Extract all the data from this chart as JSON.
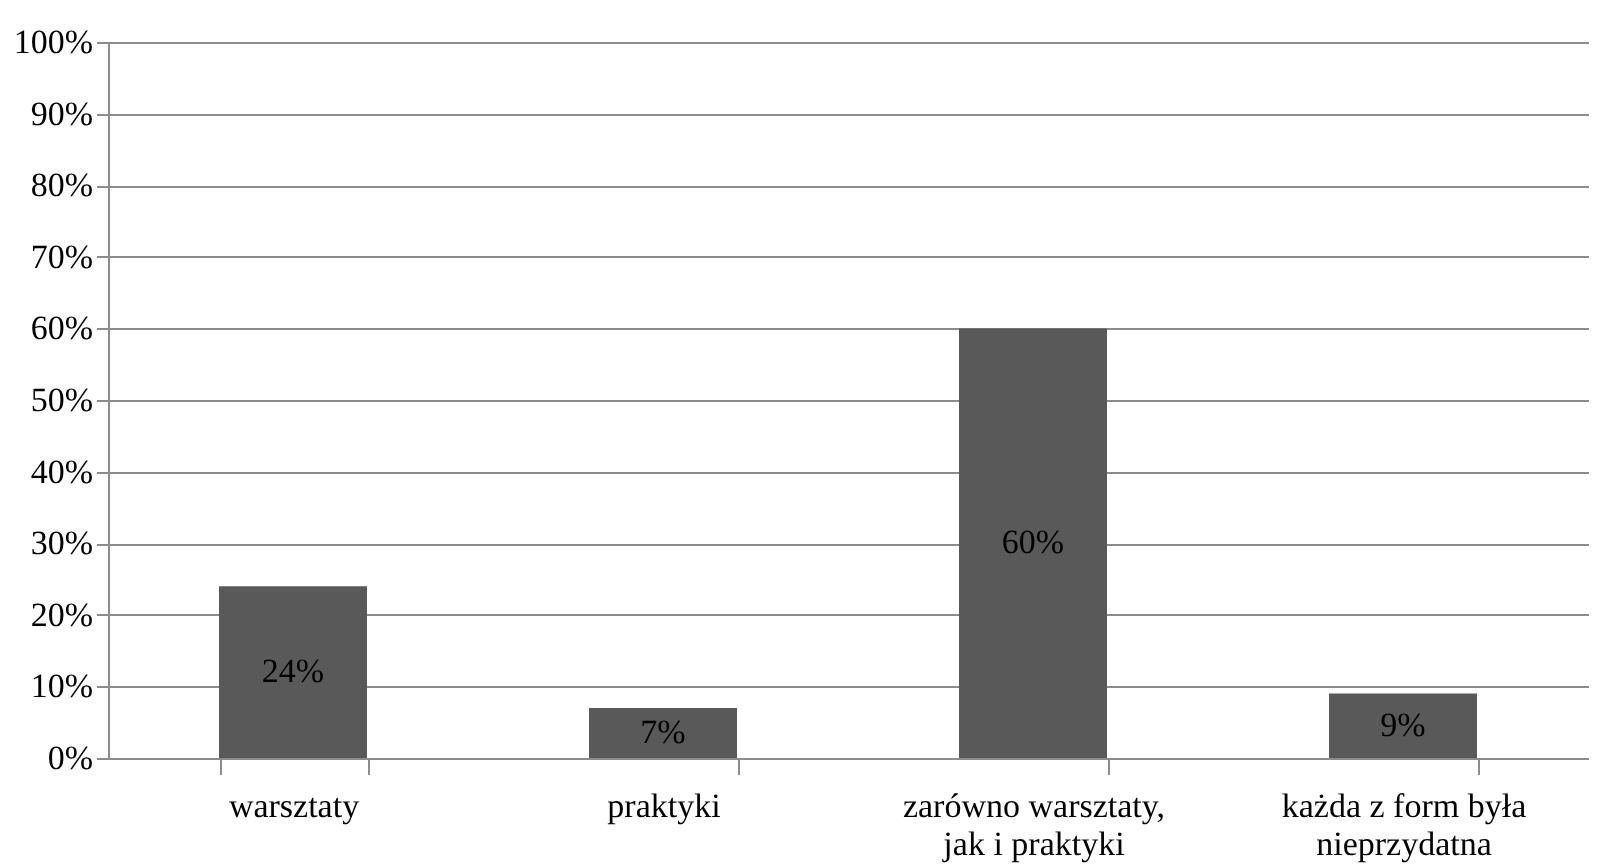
{
  "chart_data": {
    "type": "bar",
    "categories": [
      "warsztaty",
      "praktyki",
      "zarówno warsztaty, jak i praktyki",
      "każda z form była nieprzydatna"
    ],
    "values": [
      24,
      7,
      60,
      9
    ],
    "value_labels": [
      "24%",
      "7%",
      "60%",
      "9%"
    ],
    "color": "#595959",
    "ylim": [
      0,
      100
    ],
    "yticks": [
      {
        "value": 0,
        "label": "0%"
      },
      {
        "value": 10,
        "label": "10%"
      },
      {
        "value": 20,
        "label": "20%"
      },
      {
        "value": 30,
        "label": "30%"
      },
      {
        "value": 40,
        "label": "40%"
      },
      {
        "value": 50,
        "label": "50%"
      },
      {
        "value": 60,
        "label": "60%"
      },
      {
        "value": 70,
        "label": "70%"
      },
      {
        "value": 80,
        "label": "80%"
      },
      {
        "value": 90,
        "label": "90%"
      },
      {
        "value": 100,
        "label": "100%"
      }
    ],
    "grid": "y"
  }
}
